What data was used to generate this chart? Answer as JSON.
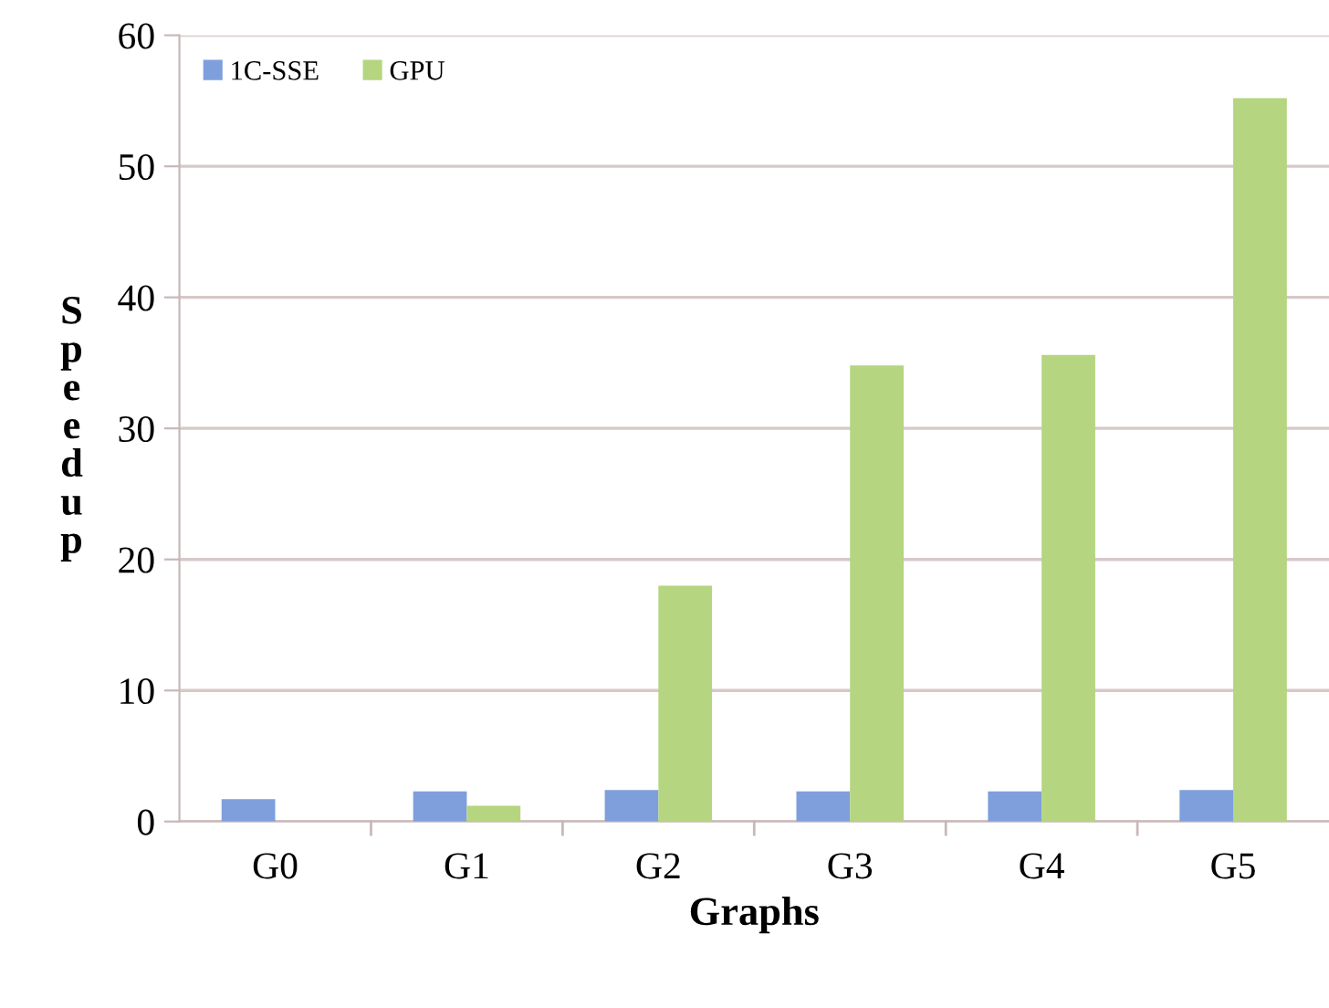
{
  "chart_data": {
    "type": "bar",
    "xlabel": "Graphs",
    "ylabel": "Speedup",
    "categories": [
      "G0",
      "G1",
      "G2",
      "G3",
      "G4",
      "G5"
    ],
    "series": [
      {
        "name": "1C-SSE",
        "color": "#7f9fdc",
        "values": [
          1.7,
          2.3,
          2.4,
          2.3,
          2.3,
          2.4
        ]
      },
      {
        "name": "GPU",
        "color": "#b5d580",
        "values": [
          null,
          1.2,
          18.0,
          34.8,
          35.6,
          55.2
        ]
      }
    ],
    "ylim": [
      0,
      60
    ],
    "yticks": [
      0,
      10,
      20,
      30,
      40,
      50,
      60
    ],
    "grid": "y",
    "legend": "top left"
  }
}
